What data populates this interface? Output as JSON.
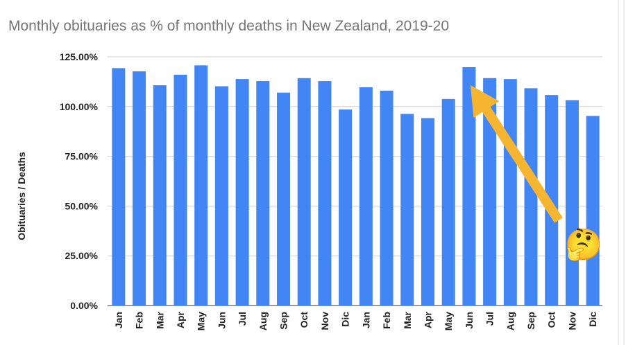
{
  "chart_data": {
    "type": "bar",
    "title": "Monthly obituaries as % of monthly deaths in New Zealand, 2019-20",
    "ylabel": "Obituaries / Deaths",
    "xlabel": "",
    "ylim": [
      0,
      125
    ],
    "yticks": [
      "0.00%",
      "25.00%",
      "50.00%",
      "75.00%",
      "100.00%",
      "125.00%"
    ],
    "categories": [
      "Jan",
      "Feb",
      "Mar",
      "Apr",
      "May",
      "Jun",
      "Jul",
      "Aug",
      "Sep",
      "Oct",
      "Nov",
      "Dic",
      "Jan",
      "Feb",
      "Mar",
      "Apr",
      "May",
      "Jun",
      "Jul",
      "Aug",
      "Sep",
      "Oct",
      "Nov",
      "Dic"
    ],
    "values": [
      119.3,
      117.7,
      110.7,
      116.0,
      120.7,
      110.2,
      113.8,
      112.8,
      107.0,
      114.3,
      112.8,
      98.5,
      109.7,
      108.0,
      96.3,
      94.2,
      103.8,
      119.8,
      114.3,
      113.8,
      109.2,
      105.8,
      103.2,
      95.3
    ],
    "bar_color": "#4285f4",
    "grid": true,
    "annotation": {
      "arrow_color": "#f5b531",
      "emoji": "🤔",
      "points_to_category_index": 17
    }
  }
}
